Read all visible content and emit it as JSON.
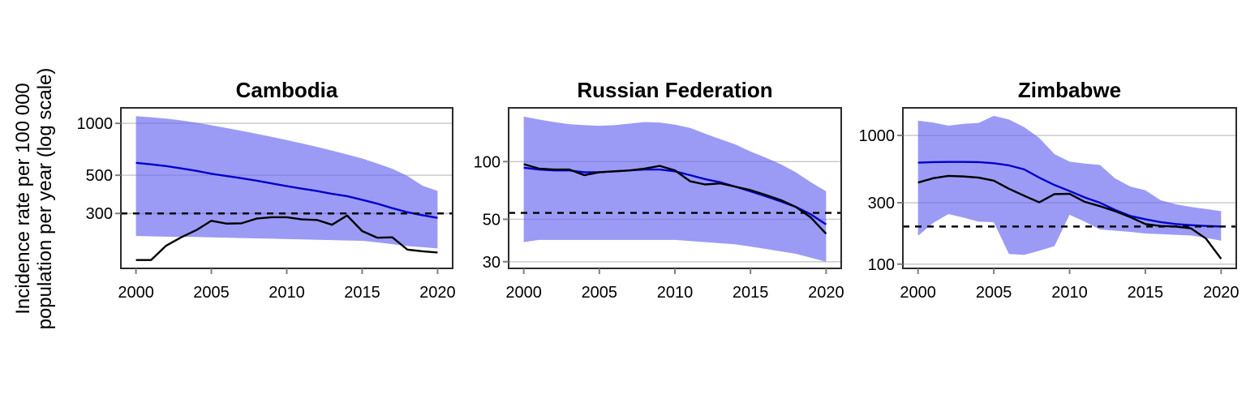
{
  "figure": {
    "y_axis_label_line1": "Incidence rate per 100 000",
    "y_axis_label_line2": "population per year (log scale)"
  },
  "colors": {
    "band": "#6666F0",
    "band_opacity": 0.65,
    "estimate_line": "#0000CD",
    "notified_line": "#000000",
    "dashed_line": "#000000",
    "gridline": "#C6C6C6",
    "panel_border": "#2B2B2B",
    "tick_mark": "#7F7F7F",
    "text": "#000000"
  },
  "chart_data": [
    {
      "type": "line",
      "title": "Cambodia",
      "xlabel": "",
      "ylabel": "Incidence rate per 100 000 population per year (log scale)",
      "x": [
        2000,
        2001,
        2002,
        2003,
        2004,
        2005,
        2006,
        2007,
        2008,
        2009,
        2010,
        2011,
        2012,
        2013,
        2014,
        2015,
        2016,
        2017,
        2018,
        2019,
        2020
      ],
      "xticks": [
        2000,
        2005,
        2010,
        2015,
        2020
      ],
      "yticks": [
        1000,
        500,
        300
      ],
      "xlim": [
        1999,
        2021
      ],
      "ylim": [
        144,
        1230
      ],
      "dashed_hline": 300,
      "grid": "horizontal-major",
      "band": {
        "name": "uncertainty-interval",
        "upper": [
          1100,
          1085,
          1065,
          1040,
          1010,
          975,
          940,
          905,
          870,
          835,
          800,
          765,
          730,
          695,
          660,
          625,
          585,
          545,
          495,
          435,
          405
        ],
        "lower": [
          222,
          221,
          220,
          219,
          219,
          218,
          217,
          216,
          215,
          214,
          213,
          212,
          211,
          210,
          209,
          208,
          204,
          199,
          194,
          191,
          188
        ]
      },
      "series": [
        {
          "name": "estimated-incidence",
          "color": "#0000CD",
          "values": [
            590,
            578,
            565,
            548,
            530,
            510,
            495,
            480,
            465,
            448,
            432,
            418,
            405,
            390,
            378,
            360,
            342,
            322,
            305,
            293,
            283
          ]
        },
        {
          "name": "notified-cases",
          "color": "#000000",
          "values": [
            161,
            161,
            195,
            218,
            240,
            272,
            262,
            263,
            280,
            285,
            285,
            277,
            275,
            258,
            292,
            237,
            217,
            218,
            185,
            181,
            178
          ]
        }
      ]
    },
    {
      "type": "line",
      "title": "Russian Federation",
      "xlabel": "",
      "ylabel": "Incidence rate per 100 000 population per year (log scale)",
      "x": [
        2000,
        2001,
        2002,
        2003,
        2004,
        2005,
        2006,
        2007,
        2008,
        2009,
        2010,
        2011,
        2012,
        2013,
        2014,
        2015,
        2016,
        2017,
        2018,
        2019,
        2020
      ],
      "xticks": [
        2000,
        2005,
        2010,
        2015,
        2020
      ],
      "yticks": [
        100,
        50,
        30
      ],
      "xlim": [
        1999,
        2021
      ],
      "ylim": [
        27.7,
        191
      ],
      "dashed_hline": 54,
      "grid": "horizontal-major",
      "band": {
        "name": "uncertainty-interval",
        "upper": [
          172,
          166,
          161,
          157,
          155,
          154,
          155,
          158,
          161,
          160,
          156,
          150,
          140,
          131,
          123,
          113,
          105,
          97,
          88,
          78,
          70
        ],
        "lower": [
          38,
          39,
          39,
          39,
          39,
          39,
          39,
          39,
          39,
          39,
          39,
          38.5,
          38,
          37.5,
          37,
          36,
          35,
          34,
          33,
          31.5,
          30
        ]
      },
      "series": [
        {
          "name": "estimated-incidence",
          "color": "#0000CD",
          "values": [
            93,
            91,
            90,
            90,
            88,
            88,
            89,
            90,
            91,
            91,
            89,
            85,
            81,
            78,
            74,
            70,
            66,
            62,
            58,
            53,
            47
          ]
        },
        {
          "name": "notified-cases",
          "color": "#000000",
          "values": [
            97,
            92,
            91,
            91,
            85,
            88,
            89,
            90,
            92,
            95,
            90,
            79,
            76,
            77,
            74,
            71,
            67,
            63,
            58,
            51,
            42
          ]
        }
      ]
    },
    {
      "type": "line",
      "title": "Zimbabwe",
      "xlabel": "",
      "ylabel": "Incidence rate per 100 000 population per year (log scale)",
      "x": [
        2000,
        2001,
        2002,
        2003,
        2004,
        2005,
        2006,
        2007,
        2008,
        2009,
        2010,
        2011,
        2012,
        2013,
        2014,
        2015,
        2016,
        2017,
        2018,
        2019,
        2020
      ],
      "xticks": [
        2000,
        2005,
        2010,
        2015,
        2020
      ],
      "yticks": [
        1000,
        300,
        100
      ],
      "xlim": [
        1999,
        2021
      ],
      "ylim": [
        92.7,
        1638
      ],
      "dashed_hline": 196,
      "grid": "horizontal-major",
      "band": {
        "name": "uncertainty-interval",
        "upper": [
          1300,
          1260,
          1190,
          1230,
          1250,
          1420,
          1330,
          1160,
          956,
          716,
          625,
          604,
          590,
          464,
          401,
          375,
          314,
          292,
          278,
          268,
          258
        ],
        "lower": [
          166,
          209,
          245,
          230,
          214,
          212,
          120,
          118,
          127,
          138,
          242,
          214,
          186,
          182,
          178,
          173,
          171,
          169,
          167,
          160,
          152
        ]
      },
      "series": [
        {
          "name": "estimated-incidence",
          "color": "#0000CD",
          "values": [
            615,
            620,
            623,
            623,
            620,
            608,
            585,
            545,
            470,
            412,
            370,
            330,
            300,
            264,
            237,
            223,
            212,
            205,
            201,
            198,
            196
          ]
        },
        {
          "name": "notified-cases",
          "color": "#000000",
          "values": [
            430,
            465,
            485,
            480,
            470,
            445,
            385,
            340,
            302,
            350,
            352,
            305,
            282,
            258,
            232,
            205,
            198,
            196,
            190,
            158,
            110
          ]
        }
      ]
    }
  ]
}
